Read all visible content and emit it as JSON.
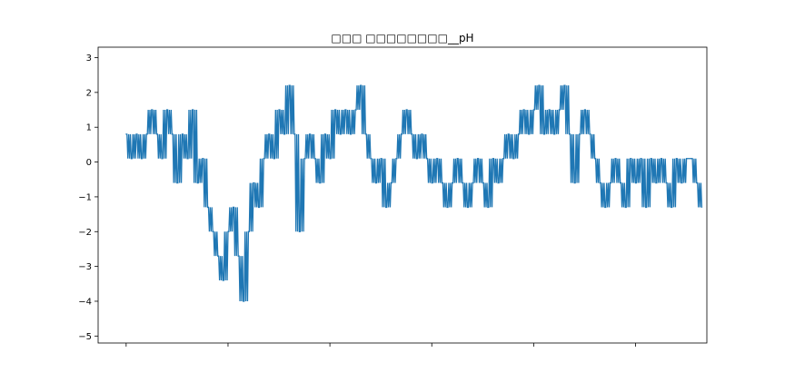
{
  "chart_data": {
    "type": "line",
    "title": "□□□ □□□□□□□□__pH",
    "xlabel": "",
    "ylabel": "",
    "xlim": [
      -55,
      1140
    ],
    "ylim": [
      -5.2,
      3.3
    ],
    "yticks": [
      3,
      2,
      1,
      0,
      -1,
      -2,
      -3,
      -4,
      -5
    ],
    "xticks_count": 6,
    "color": "#1f77b4",
    "grid": false,
    "series": [
      {
        "name": "",
        "x": [
          0,
          10,
          20,
          30,
          40,
          50,
          60,
          70,
          80,
          90,
          100,
          110,
          120,
          130,
          140,
          150,
          160,
          170,
          180,
          190,
          200,
          210,
          220,
          230,
          240,
          250,
          260,
          270,
          280,
          290,
          300,
          310,
          320,
          330,
          340,
          350,
          360,
          370,
          380,
          390,
          400,
          410,
          420,
          430,
          440,
          450,
          460,
          470,
          480,
          490,
          500,
          510,
          520,
          530,
          540,
          550,
          560,
          570,
          580,
          590,
          600,
          610,
          620,
          630,
          640,
          650,
          660,
          670,
          680,
          690,
          700,
          710,
          720,
          730,
          740,
          750,
          760,
          770,
          780,
          790,
          800,
          810,
          820,
          830,
          840,
          850,
          860,
          870,
          880,
          890,
          900,
          910,
          920,
          930,
          940,
          950,
          960,
          970,
          980,
          990,
          1000,
          1010,
          1020,
          1030,
          1040,
          1050,
          1060,
          1070,
          1080,
          1090,
          1100,
          1110,
          1120,
          1130
        ],
        "y": [
          0.8,
          0.1,
          0.8,
          0.1,
          0.8,
          1.5,
          0.8,
          0.1,
          1.5,
          0.8,
          -0.6,
          0.8,
          0.1,
          1.5,
          -0.6,
          0.1,
          -1.3,
          -2.0,
          -2.7,
          -3.4,
          -2.0,
          -1.3,
          -2.7,
          -4.0,
          -2.0,
          -0.6,
          -1.3,
          0.1,
          0.8,
          0.1,
          1.5,
          0.8,
          2.2,
          0.8,
          -2.0,
          0.1,
          0.8,
          0.1,
          -0.6,
          0.8,
          0.1,
          1.5,
          0.8,
          1.5,
          0.8,
          1.5,
          2.2,
          0.8,
          0.1,
          -0.6,
          0.1,
          -1.3,
          -0.6,
          0.1,
          0.8,
          1.5,
          0.8,
          0.1,
          0.8,
          0.1,
          -0.6,
          0.1,
          -0.6,
          -1.3,
          -0.6,
          0.1,
          -0.6,
          -1.3,
          -0.6,
          0.1,
          -0.6,
          -1.3,
          0.1,
          -0.6,
          0.1,
          0.8,
          0.1,
          0.8,
          1.5,
          0.8,
          1.5,
          2.2,
          0.8,
          1.5,
          0.8,
          1.5,
          2.2,
          0.8,
          -0.6,
          0.8,
          1.5,
          0.8,
          0.1,
          -0.6,
          -1.3,
          -0.6,
          0.1,
          -0.6,
          -1.3,
          0.1,
          -0.6,
          0.1,
          -1.3,
          0.1,
          -0.6,
          0.1,
          -0.6,
          -1.3,
          0.1,
          -0.6,
          0.1,
          0.1,
          -0.6,
          -1.3
        ]
      }
    ]
  }
}
